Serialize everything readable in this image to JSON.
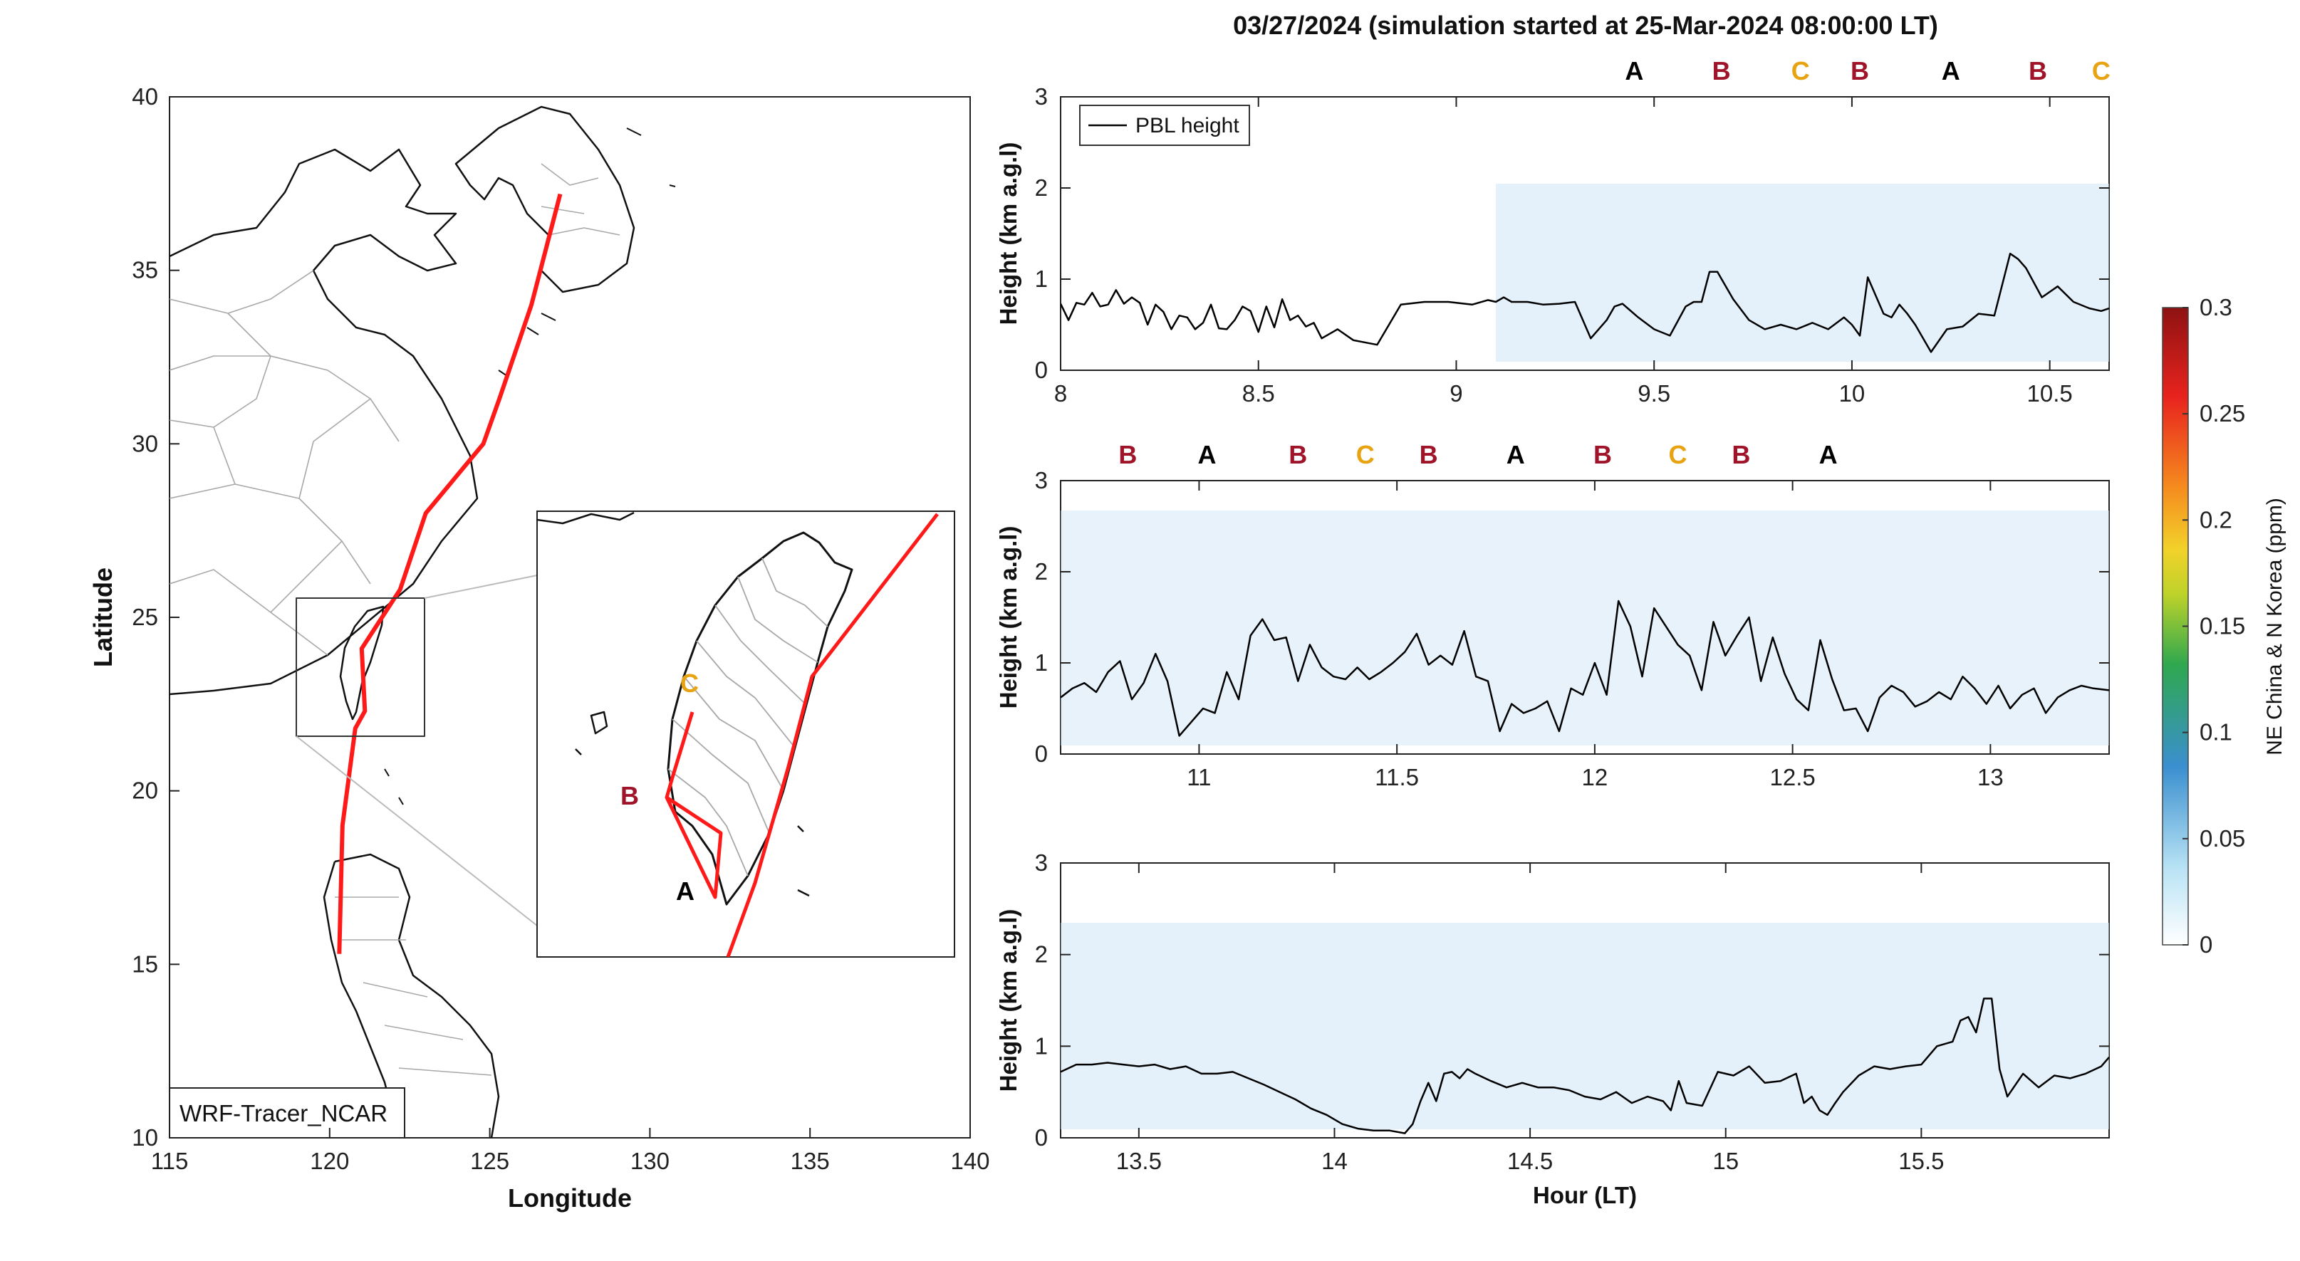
{
  "figure": {
    "title": "03/27/2024 (simulation started at 25-Mar-2024 08:00:00 LT)",
    "colors": {
      "track": "#ff1a1a",
      "A": "#000000",
      "B": "#a0142a",
      "C": "#e8a312",
      "pbl": "#000000",
      "tracer": "#cfe6f6"
    }
  },
  "chart_data": [
    {
      "type": "line",
      "panel": "map",
      "xlabel": "Longitude",
      "ylabel": "Latitude",
      "xlim": [
        115,
        140
      ],
      "ylim": [
        10,
        40
      ],
      "xticks": [
        "115",
        "120",
        "125",
        "130",
        "135",
        "140"
      ],
      "yticks": [
        "10",
        "15",
        "20",
        "25",
        "30",
        "35",
        "40"
      ],
      "source_label": "WRF-Tracer_NCAR",
      "track": {
        "lon": [
          127.2,
          126.3,
          125.3,
          124.8,
          123.0,
          122.2,
          121.0,
          121.1,
          120.8,
          120.4,
          120.3
        ],
        "lat": [
          37.2,
          34.0,
          31.3,
          30.0,
          28.0,
          25.8,
          24.1,
          22.3,
          21.8,
          19.0,
          15.3
        ]
      },
      "inset": {
        "markers": [
          {
            "letter": "C",
            "lon": 120.55,
            "lat": 23.55
          },
          {
            "letter": "B",
            "lon": 120.15,
            "lat": 22.55
          },
          {
            "letter": "A",
            "lon": 120.55,
            "lat": 21.95
          }
        ]
      }
    },
    {
      "type": "line",
      "panel": "time-1",
      "ylabel": "Height (km a.g.l)",
      "xlim": [
        8.0,
        10.65
      ],
      "ylim": [
        0,
        3
      ],
      "xticks": [
        "8",
        "8.5",
        "9",
        "9.5",
        "10",
        "10.5"
      ],
      "yticks": [
        "0",
        "1",
        "2",
        "3"
      ],
      "legend": "PBL height",
      "tracer_range": [
        9.1,
        10.65
      ],
      "top_labels": [
        {
          "t": 9.45,
          "letter": "A"
        },
        {
          "t": 9.67,
          "letter": "B"
        },
        {
          "t": 9.87,
          "letter": "C"
        },
        {
          "t": 10.02,
          "letter": "B"
        },
        {
          "t": 10.25,
          "letter": "A"
        },
        {
          "t": 10.47,
          "letter": "B"
        },
        {
          "t": 10.63,
          "letter": "C"
        }
      ],
      "x": [
        8.0,
        8.02,
        8.04,
        8.06,
        8.08,
        8.1,
        8.12,
        8.14,
        8.16,
        8.18,
        8.2,
        8.22,
        8.24,
        8.26,
        8.28,
        8.3,
        8.32,
        8.34,
        8.36,
        8.38,
        8.4,
        8.42,
        8.44,
        8.46,
        8.48,
        8.5,
        8.52,
        8.54,
        8.56,
        8.58,
        8.6,
        8.62,
        8.64,
        8.66,
        8.7,
        8.74,
        8.8,
        8.86,
        8.92,
        8.98,
        9.04,
        9.08,
        9.1,
        9.12,
        9.14,
        9.18,
        9.22,
        9.26,
        9.3,
        9.34,
        9.38,
        9.4,
        9.42,
        9.46,
        9.5,
        9.54,
        9.58,
        9.6,
        9.62,
        9.64,
        9.66,
        9.7,
        9.74,
        9.78,
        9.82,
        9.86,
        9.9,
        9.94,
        9.98,
        10.0,
        10.02,
        10.04,
        10.06,
        10.08,
        10.1,
        10.12,
        10.14,
        10.16,
        10.2,
        10.24,
        10.28,
        10.32,
        10.36,
        10.4,
        10.42,
        10.44,
        10.48,
        10.52,
        10.56,
        10.6,
        10.63,
        10.65
      ],
      "values": [
        0.73,
        0.55,
        0.74,
        0.72,
        0.85,
        0.7,
        0.72,
        0.88,
        0.73,
        0.8,
        0.74,
        0.5,
        0.72,
        0.64,
        0.45,
        0.6,
        0.58,
        0.45,
        0.52,
        0.72,
        0.46,
        0.45,
        0.55,
        0.7,
        0.65,
        0.42,
        0.7,
        0.47,
        0.78,
        0.55,
        0.6,
        0.48,
        0.52,
        0.35,
        0.45,
        0.33,
        0.28,
        0.72,
        0.75,
        0.75,
        0.72,
        0.77,
        0.75,
        0.8,
        0.75,
        0.75,
        0.72,
        0.73,
        0.75,
        0.35,
        0.55,
        0.7,
        0.73,
        0.58,
        0.45,
        0.38,
        0.7,
        0.75,
        0.75,
        1.08,
        1.08,
        0.78,
        0.55,
        0.45,
        0.5,
        0.45,
        0.52,
        0.45,
        0.58,
        0.5,
        0.38,
        1.02,
        0.82,
        0.62,
        0.58,
        0.72,
        0.62,
        0.5,
        0.2,
        0.45,
        0.48,
        0.62,
        0.6,
        1.28,
        1.22,
        1.12,
        0.8,
        0.92,
        0.75,
        0.68,
        0.65,
        0.68
      ]
    },
    {
      "type": "line",
      "panel": "time-2",
      "ylabel": "Height (km a.g.l)",
      "xlim": [
        10.65,
        13.3
      ],
      "ylim": [
        0,
        3
      ],
      "xticks": [
        "11",
        "11.5",
        "12",
        "12.5",
        "13"
      ],
      "yticks": [
        "0",
        "1",
        "2",
        "3"
      ],
      "tracer_range": [
        10.65,
        13.3
      ],
      "top_labels": [
        {
          "t": 10.82,
          "letter": "B"
        },
        {
          "t": 11.02,
          "letter": "A"
        },
        {
          "t": 11.25,
          "letter": "B"
        },
        {
          "t": 11.42,
          "letter": "C"
        },
        {
          "t": 11.58,
          "letter": "B"
        },
        {
          "t": 11.8,
          "letter": "A"
        },
        {
          "t": 12.02,
          "letter": "B"
        },
        {
          "t": 12.21,
          "letter": "C"
        },
        {
          "t": 12.37,
          "letter": "B"
        },
        {
          "t": 12.59,
          "letter": "A"
        }
      ],
      "x": [
        10.65,
        10.68,
        10.71,
        10.74,
        10.77,
        10.8,
        10.83,
        10.86,
        10.89,
        10.92,
        10.95,
        10.98,
        11.01,
        11.04,
        11.07,
        11.1,
        11.13,
        11.16,
        11.19,
        11.22,
        11.25,
        11.28,
        11.31,
        11.34,
        11.37,
        11.4,
        11.43,
        11.46,
        11.49,
        11.52,
        11.55,
        11.58,
        11.61,
        11.64,
        11.67,
        11.7,
        11.73,
        11.76,
        11.79,
        11.82,
        11.85,
        11.88,
        11.91,
        11.94,
        11.97,
        12.0,
        12.03,
        12.06,
        12.09,
        12.12,
        12.15,
        12.18,
        12.21,
        12.24,
        12.27,
        12.3,
        12.33,
        12.36,
        12.39,
        12.42,
        12.45,
        12.48,
        12.51,
        12.54,
        12.57,
        12.6,
        12.63,
        12.66,
        12.69,
        12.72,
        12.75,
        12.78,
        12.81,
        12.84,
        12.87,
        12.9,
        12.93,
        12.96,
        12.99,
        13.02,
        13.05,
        13.08,
        13.11,
        13.14,
        13.17,
        13.2,
        13.23,
        13.26,
        13.3
      ],
      "values": [
        0.62,
        0.72,
        0.78,
        0.68,
        0.9,
        1.02,
        0.6,
        0.78,
        1.1,
        0.8,
        0.2,
        0.35,
        0.5,
        0.45,
        0.9,
        0.6,
        1.3,
        1.48,
        1.25,
        1.28,
        0.8,
        1.2,
        0.95,
        0.85,
        0.82,
        0.95,
        0.82,
        0.9,
        1.0,
        1.12,
        1.32,
        0.98,
        1.08,
        0.98,
        1.35,
        0.85,
        0.8,
        0.25,
        0.55,
        0.45,
        0.5,
        0.58,
        0.25,
        0.72,
        0.65,
        1.0,
        0.65,
        1.68,
        1.4,
        0.85,
        1.6,
        1.4,
        1.2,
        1.08,
        0.7,
        1.45,
        1.08,
        1.3,
        1.5,
        0.8,
        1.28,
        0.88,
        0.6,
        0.48,
        1.25,
        0.82,
        0.48,
        0.5,
        0.25,
        0.62,
        0.75,
        0.68,
        0.52,
        0.58,
        0.68,
        0.6,
        0.85,
        0.72,
        0.55,
        0.75,
        0.5,
        0.65,
        0.72,
        0.45,
        0.62,
        0.7,
        0.75,
        0.72,
        0.7
      ]
    },
    {
      "type": "line",
      "panel": "time-3",
      "xlabel": "Hour (LT)",
      "ylabel": "Height (km a.g.l)",
      "xlim": [
        13.3,
        15.98
      ],
      "ylim": [
        0,
        3
      ],
      "xticks": [
        "13.5",
        "14",
        "14.5",
        "15",
        "15.5"
      ],
      "yticks": [
        "0",
        "1",
        "2",
        "3"
      ],
      "tracer_range": [
        13.3,
        15.98
      ],
      "x": [
        13.3,
        13.34,
        13.38,
        13.42,
        13.46,
        13.5,
        13.54,
        13.58,
        13.62,
        13.66,
        13.7,
        13.74,
        13.78,
        13.82,
        13.86,
        13.9,
        13.94,
        13.98,
        14.02,
        14.06,
        14.1,
        14.14,
        14.18,
        14.2,
        14.22,
        14.24,
        14.26,
        14.28,
        14.3,
        14.32,
        14.34,
        14.36,
        14.4,
        14.44,
        14.48,
        14.52,
        14.56,
        14.6,
        14.64,
        14.68,
        14.72,
        14.76,
        14.8,
        14.84,
        14.86,
        14.88,
        14.9,
        14.94,
        14.98,
        15.02,
        15.06,
        15.1,
        15.14,
        15.18,
        15.2,
        15.22,
        15.24,
        15.26,
        15.28,
        15.3,
        15.34,
        15.38,
        15.42,
        15.46,
        15.5,
        15.54,
        15.58,
        15.6,
        15.62,
        15.64,
        15.66,
        15.68,
        15.7,
        15.72,
        15.76,
        15.8,
        15.84,
        15.88,
        15.92,
        15.96,
        15.98
      ],
      "values": [
        0.72,
        0.8,
        0.8,
        0.82,
        0.8,
        0.78,
        0.8,
        0.75,
        0.78,
        0.7,
        0.7,
        0.72,
        0.65,
        0.58,
        0.5,
        0.42,
        0.32,
        0.25,
        0.15,
        0.1,
        0.08,
        0.08,
        0.05,
        0.15,
        0.4,
        0.6,
        0.4,
        0.7,
        0.72,
        0.65,
        0.75,
        0.7,
        0.62,
        0.55,
        0.6,
        0.55,
        0.55,
        0.52,
        0.45,
        0.42,
        0.5,
        0.38,
        0.45,
        0.4,
        0.3,
        0.62,
        0.38,
        0.35,
        0.72,
        0.68,
        0.78,
        0.6,
        0.62,
        0.7,
        0.38,
        0.45,
        0.3,
        0.25,
        0.38,
        0.5,
        0.68,
        0.78,
        0.75,
        0.78,
        0.8,
        1.0,
        1.05,
        1.28,
        1.32,
        1.15,
        1.52,
        1.52,
        0.75,
        0.45,
        0.7,
        0.55,
        0.68,
        0.65,
        0.7,
        0.78,
        0.88
      ]
    }
  ],
  "colorbar": {
    "label": "NE China & N Korea (ppm)",
    "ticks": [
      "0",
      "0.05",
      "0.1",
      "0.15",
      "0.2",
      "0.25",
      "0.3"
    ]
  }
}
